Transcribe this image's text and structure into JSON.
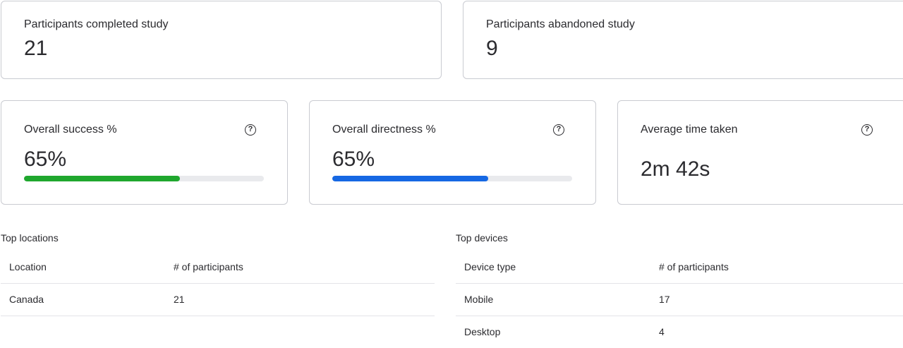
{
  "summary": {
    "completed": {
      "label": "Participants completed study",
      "value": "21"
    },
    "abandoned": {
      "label": "Participants abandoned study",
      "value": "9"
    }
  },
  "metrics": {
    "success": {
      "label": "Overall success %",
      "value": "65%",
      "progress_percent": 65,
      "color": "#1fa72e",
      "help_icon": "question-circle-icon"
    },
    "directness": {
      "label": "Overall directness %",
      "value": "65%",
      "progress_percent": 65,
      "color": "#1668e3",
      "help_icon": "question-circle-icon"
    },
    "time": {
      "label": "Average time taken",
      "value": "2m 42s",
      "help_icon": "question-circle-icon"
    }
  },
  "locations": {
    "title": "Top locations",
    "headers": [
      "Location",
      "# of participants"
    ],
    "rows": [
      [
        "Canada",
        "21"
      ]
    ]
  },
  "devices": {
    "title": "Top devices",
    "headers": [
      "Device type",
      "# of participants"
    ],
    "rows": [
      [
        "Mobile",
        "17"
      ],
      [
        "Desktop",
        "4"
      ]
    ]
  },
  "help_glyph": "?"
}
